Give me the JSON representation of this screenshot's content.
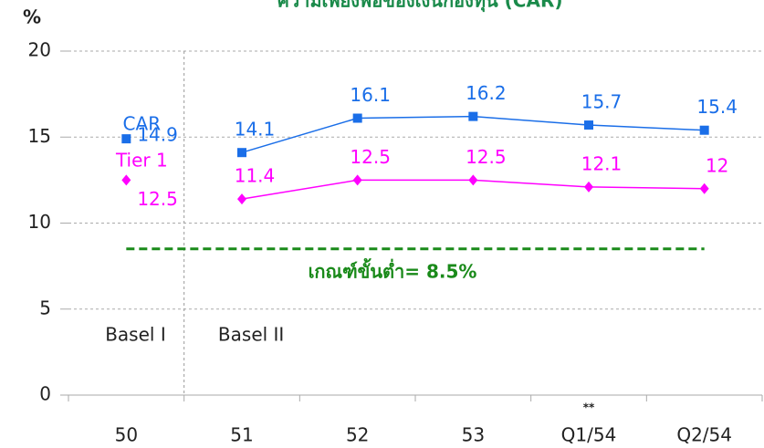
{
  "chart_data": {
    "type": "line",
    "title": "ความเพียงพอของเงินกองทุน (CAR)",
    "y_label": "%",
    "categories": [
      "50",
      "51",
      "52",
      "53",
      "Q1/54",
      "Q2/54"
    ],
    "series": [
      {
        "name": "CAR",
        "color": "#1a6ee8",
        "marker": "square",
        "values": [
          14.9,
          14.1,
          16.1,
          16.2,
          15.7,
          15.4
        ]
      },
      {
        "name": "Tier 1",
        "color": "#ff00ff",
        "marker": "diamond",
        "values": [
          12.5,
          11.4,
          12.5,
          12.5,
          12.1,
          12.0
        ]
      }
    ],
    "ylim": [
      0,
      20
    ],
    "yticks": [
      0,
      5,
      10,
      15,
      20
    ],
    "grid": true,
    "eras": [
      {
        "label": "Basel I",
        "start": 0,
        "end": 0
      },
      {
        "label": "Basel II",
        "start": 1,
        "end": 5
      }
    ],
    "threshold": {
      "value": 8.5,
      "label": "เกณฑ์ขั้นต่ำ= 8.5%",
      "color": "#1a8a1a"
    },
    "annotation": {
      "category": 4,
      "text": "**"
    }
  }
}
